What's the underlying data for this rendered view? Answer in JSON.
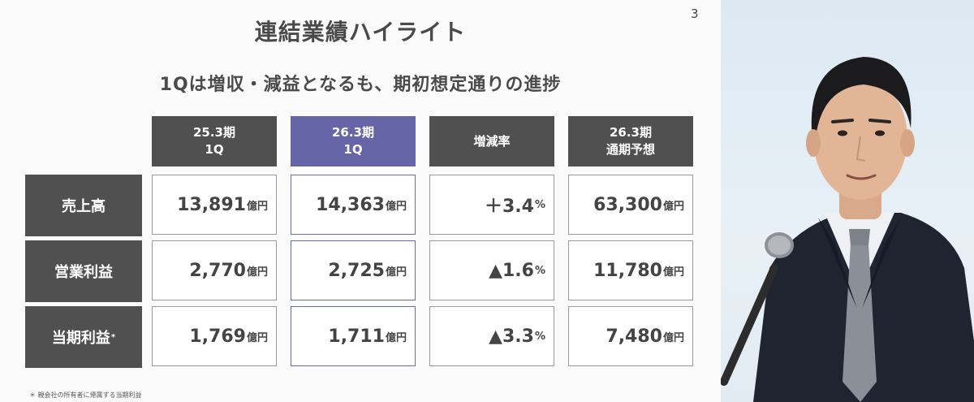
{
  "slide": {
    "page_number": "3",
    "title": "連結業績ハイライト",
    "subtitle": "1Qは増収・減益となるも、期初想定通りの進捗",
    "footnote": "＊ 親会社の所有者に帰属する当期利益"
  },
  "table": {
    "columns": [
      {
        "line1": "25.3期",
        "line2": "1Q"
      },
      {
        "line1": "26.3期",
        "line2": "1Q"
      },
      {
        "line1": "増減率",
        "line2": ""
      },
      {
        "line1": "26.3期",
        "line2": "通期予想"
      }
    ],
    "rows": [
      {
        "label": "売上高",
        "label_mark": "",
        "cells": [
          {
            "value": "13,891",
            "unit": "億円"
          },
          {
            "value": "14,363",
            "unit": "億円"
          },
          {
            "value": "＋3.4",
            "unit": "%"
          },
          {
            "value": "63,300",
            "unit": "億円"
          }
        ]
      },
      {
        "label": "営業利益",
        "label_mark": "",
        "cells": [
          {
            "value": "2,770",
            "unit": "億円"
          },
          {
            "value": "2,725",
            "unit": "億円"
          },
          {
            "value": "▲1.6",
            "unit": "%"
          },
          {
            "value": "11,780",
            "unit": "億円"
          }
        ]
      },
      {
        "label": "当期利益",
        "label_mark": "*",
        "cells": [
          {
            "value": "1,769",
            "unit": "億円"
          },
          {
            "value": "1,711",
            "unit": "億円"
          },
          {
            "value": "▲3.3",
            "unit": "%"
          },
          {
            "value": "7,480",
            "unit": "億円"
          }
        ]
      }
    ]
  },
  "colors": {
    "header_gray": "#505050",
    "header_highlight": "#6665a8",
    "cell_border": "#9a9a9a"
  }
}
